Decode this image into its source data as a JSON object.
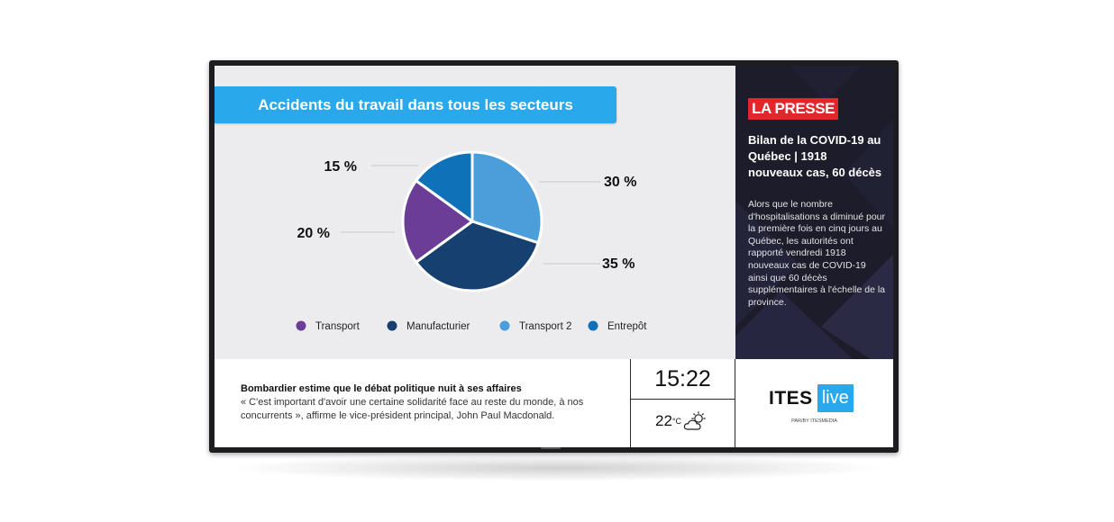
{
  "chart_data": {
    "type": "pie",
    "title": "Accidents du travail dans tous les secteurs",
    "categories": [
      "Transport",
      "Manufacturier",
      "Transport 2",
      "Entrepôt"
    ],
    "values": [
      20,
      35,
      30,
      15
    ],
    "value_labels": [
      "20 %",
      "35 %",
      "30 %",
      "15 %"
    ],
    "colors": [
      "#6b3d97",
      "#16406f",
      "#4b9ed9",
      "#0f72b8"
    ],
    "legend_position": "bottom"
  },
  "news": {
    "source": "LA PRESSE",
    "headline": "Bilan de la COVID-19 au Québec | 1918 nouveaux cas, 60 décès",
    "body": "Alors que le nombre d'hospitalisations a diminué pour la première fois en cinq jours au Québec, les autorités ont rapporté vendredi 1918 nouveaux cas de COVID-19 ainsi que 60 décès supplémentaires à l'échelle de la province."
  },
  "ticker": {
    "title": "Bombardier estime que le débat politique nuit à ses affaires",
    "text": "« C'est important d'avoir une certaine solidarité face au reste du monde, à nos concurrents », affirme le vice-président principal, John Paul Macdonald."
  },
  "clock": {
    "time": "15:22",
    "temperature": "22",
    "unit": "°C",
    "weather_icon": "partly-cloudy-icon"
  },
  "brand": {
    "name": "ITES",
    "tag": "live",
    "subtitle": "PAR/BY ITESMEDIA"
  },
  "colors": {
    "banner": "#2aa8ec",
    "press_red": "#e3262b",
    "news_bg": "#1c1c2a"
  }
}
